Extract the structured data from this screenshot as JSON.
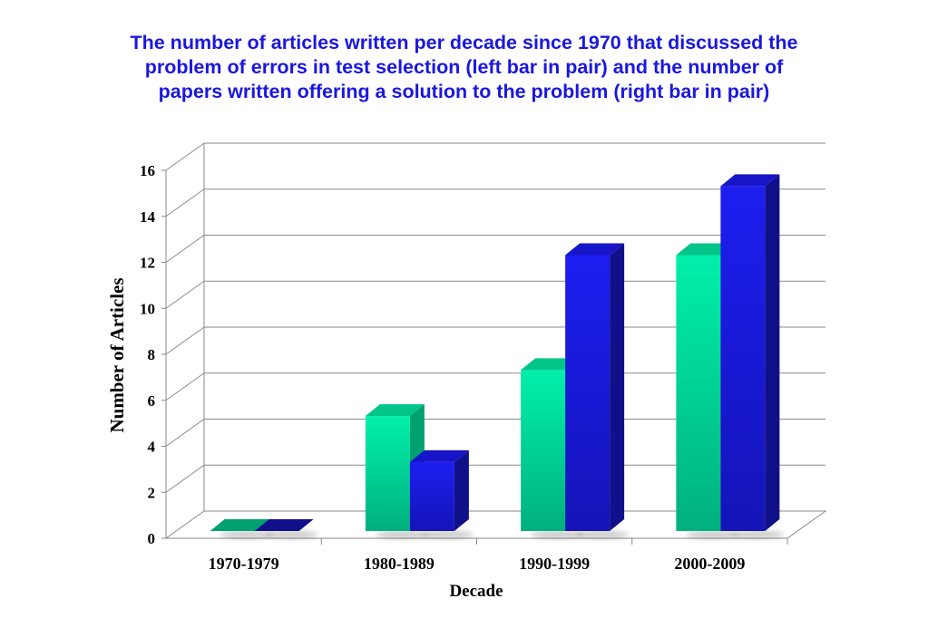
{
  "title_lines": [
    "The number of articles written per decade since 1970 that discussed the",
    "problem of errors in test selection (left bar in pair) and the number of",
    "papers written offering a solution to the problem (right bar in pair)"
  ],
  "chart_data": {
    "type": "bar",
    "categories": [
      "1970-1979",
      "1980-1989",
      "1990-1999",
      "2000-2009"
    ],
    "series": [
      {
        "values": [
          0,
          5,
          7,
          12
        ],
        "color": "#00e5a0"
      },
      {
        "values": [
          0,
          3,
          12,
          15
        ],
        "color": "#1a1ae0"
      }
    ],
    "xlabel": "Decade",
    "ylabel": "Number of Articles",
    "ylim": [
      0,
      16
    ],
    "yticks": [
      0,
      2,
      4,
      6,
      8,
      10,
      12,
      14,
      16
    ],
    "grid": true,
    "style": "3d-clustered-bar"
  }
}
